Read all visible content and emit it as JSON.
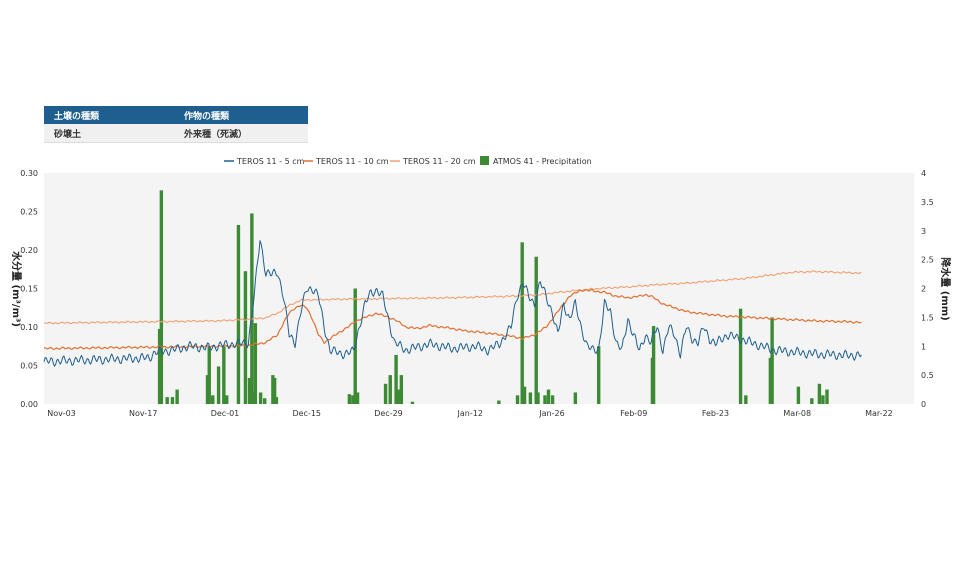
{
  "info_table": {
    "headers": [
      "土壌の種類",
      "作物の種類"
    ],
    "row": [
      "砂壌土",
      "外来種（死滅）"
    ]
  },
  "colors": {
    "teros_5": "#1f5f8f",
    "teros_10": "#e07030",
    "teros_20": "#f0a070",
    "precip": "#3d8a35",
    "plot_bg": "#f4f4f4",
    "header_bg": "#1f5f8f"
  },
  "chart_data": {
    "type": "line",
    "legend_position": "top",
    "grid": false,
    "x_tick_labels": [
      "Nov-03",
      "Nov-17",
      "Dec-01",
      "Dec-15",
      "Dec-29",
      "Jan-12",
      "Jan-26",
      "Feb-09",
      "Feb-23",
      "Mar-08",
      "Mar-22"
    ],
    "x_range": [
      "Oct-31",
      "Mar-29"
    ],
    "y_left": {
      "label": "水分量 (m³/m³)",
      "ticks": [
        "0.00",
        "0.05",
        "0.10",
        "0.15",
        "0.20",
        "0.25",
        "0.30"
      ],
      "range": [
        0,
        0.3
      ]
    },
    "y_right": {
      "label": "降水量 (mm)",
      "ticks": [
        "0",
        "0.5",
        "1",
        "1.5",
        "2",
        "2.5",
        "3",
        "3.5",
        "4"
      ],
      "range": [
        0,
        4
      ]
    },
    "series": [
      {
        "name": "TEROS 11 - 5 cm",
        "type": "line",
        "axis": "left",
        "points": [
          [
            0,
            0.055
          ],
          [
            18,
            0.06
          ],
          [
            19,
            0.067
          ],
          [
            22,
            0.07
          ],
          [
            25,
            0.075
          ],
          [
            28,
            0.073
          ],
          [
            31,
            0.077
          ],
          [
            33,
            0.078
          ],
          [
            35,
            0.08
          ],
          [
            36,
            0.14
          ],
          [
            37,
            0.215
          ],
          [
            38,
            0.17
          ],
          [
            39,
            0.168
          ],
          [
            40,
            0.172
          ],
          [
            41,
            0.14
          ],
          [
            42,
            0.09
          ],
          [
            43,
            0.08
          ],
          [
            44,
            0.12
          ],
          [
            45,
            0.15
          ],
          [
            46,
            0.15
          ],
          [
            47,
            0.14
          ],
          [
            48,
            0.1
          ],
          [
            49,
            0.07
          ],
          [
            51,
            0.065
          ],
          [
            53,
            0.068
          ],
          [
            54,
            0.1
          ],
          [
            55,
            0.13
          ],
          [
            56,
            0.145
          ],
          [
            57,
            0.148
          ],
          [
            58,
            0.14
          ],
          [
            59,
            0.11
          ],
          [
            60,
            0.08
          ],
          [
            62,
            0.07
          ],
          [
            66,
            0.078
          ],
          [
            70,
            0.072
          ],
          [
            74,
            0.075
          ],
          [
            76,
            0.07
          ],
          [
            78,
            0.078
          ],
          [
            80,
            0.1
          ],
          [
            81,
            0.14
          ],
          [
            82,
            0.158
          ],
          [
            83,
            0.14
          ],
          [
            84,
            0.13
          ],
          [
            85,
            0.158
          ],
          [
            86,
            0.14
          ],
          [
            87,
            0.12
          ],
          [
            88,
            0.09
          ],
          [
            89,
            0.13
          ],
          [
            90,
            0.11
          ],
          [
            91,
            0.13
          ],
          [
            92,
            0.1
          ],
          [
            93,
            0.075
          ],
          [
            94,
            0.07
          ],
          [
            95,
            0.072
          ],
          [
            96,
            0.13
          ],
          [
            97,
            0.12
          ],
          [
            98,
            0.08
          ],
          [
            99,
            0.07
          ],
          [
            100,
            0.11
          ],
          [
            101,
            0.09
          ],
          [
            102,
            0.068
          ],
          [
            103,
            0.09
          ],
          [
            104,
            0.08
          ],
          [
            105,
            0.1
          ],
          [
            106,
            0.07
          ],
          [
            107,
            0.1
          ],
          [
            108,
            0.09
          ],
          [
            109,
            0.065
          ],
          [
            110,
            0.1
          ],
          [
            111,
            0.085
          ],
          [
            112,
            0.08
          ],
          [
            113,
            0.1
          ],
          [
            114,
            0.085
          ],
          [
            115,
            0.078
          ],
          [
            117,
            0.09
          ],
          [
            119,
            0.085
          ],
          [
            121,
            0.08
          ],
          [
            123,
            0.075
          ],
          [
            125,
            0.07
          ],
          [
            129,
            0.067
          ],
          [
            132,
            0.065
          ],
          [
            135,
            0.064
          ],
          [
            138,
            0.063
          ],
          [
            140,
            0.064
          ]
        ]
      },
      {
        "name": "TEROS 11 - 10 cm",
        "type": "line",
        "axis": "left",
        "points": [
          [
            0,
            0.072
          ],
          [
            10,
            0.073
          ],
          [
            20,
            0.074
          ],
          [
            30,
            0.075
          ],
          [
            35,
            0.076
          ],
          [
            38,
            0.08
          ],
          [
            40,
            0.09
          ],
          [
            41,
            0.105
          ],
          [
            42,
            0.118
          ],
          [
            43,
            0.125
          ],
          [
            44,
            0.128
          ],
          [
            45,
            0.125
          ],
          [
            46,
            0.11
          ],
          [
            47,
            0.09
          ],
          [
            48,
            0.08
          ],
          [
            50,
            0.09
          ],
          [
            52,
            0.1
          ],
          [
            54,
            0.11
          ],
          [
            56,
            0.115
          ],
          [
            57,
            0.118
          ],
          [
            58,
            0.115
          ],
          [
            60,
            0.11
          ],
          [
            62,
            0.1
          ],
          [
            64,
            0.098
          ],
          [
            66,
            0.102
          ],
          [
            68,
            0.1
          ],
          [
            70,
            0.098
          ],
          [
            72,
            0.095
          ],
          [
            75,
            0.093
          ],
          [
            78,
            0.09
          ],
          [
            80,
            0.088
          ],
          [
            82,
            0.085
          ],
          [
            84,
            0.09
          ],
          [
            86,
            0.1
          ],
          [
            88,
            0.12
          ],
          [
            90,
            0.14
          ],
          [
            92,
            0.148
          ],
          [
            94,
            0.147
          ],
          [
            96,
            0.145
          ],
          [
            98,
            0.14
          ],
          [
            100,
            0.138
          ],
          [
            102,
            0.14
          ],
          [
            103,
            0.142
          ],
          [
            104,
            0.14
          ],
          [
            106,
            0.13
          ],
          [
            108,
            0.125
          ],
          [
            110,
            0.12
          ],
          [
            113,
            0.117
          ],
          [
            117,
            0.114
          ],
          [
            122,
            0.112
          ],
          [
            127,
            0.11
          ],
          [
            132,
            0.108
          ],
          [
            137,
            0.107
          ],
          [
            140,
            0.106
          ]
        ]
      },
      {
        "name": "TEROS 11 - 20 cm",
        "type": "line",
        "axis": "left",
        "points": [
          [
            0,
            0.105
          ],
          [
            10,
            0.106
          ],
          [
            20,
            0.107
          ],
          [
            30,
            0.108
          ],
          [
            35,
            0.11
          ],
          [
            38,
            0.112
          ],
          [
            40,
            0.118
          ],
          [
            42,
            0.128
          ],
          [
            44,
            0.135
          ],
          [
            50,
            0.136
          ],
          [
            60,
            0.137
          ],
          [
            70,
            0.138
          ],
          [
            80,
            0.14
          ],
          [
            85,
            0.142
          ],
          [
            88,
            0.145
          ],
          [
            92,
            0.148
          ],
          [
            95,
            0.15
          ],
          [
            100,
            0.152
          ],
          [
            105,
            0.155
          ],
          [
            110,
            0.157
          ],
          [
            115,
            0.16
          ],
          [
            120,
            0.163
          ],
          [
            125,
            0.168
          ],
          [
            128,
            0.171
          ],
          [
            132,
            0.172
          ],
          [
            136,
            0.171
          ],
          [
            140,
            0.17
          ]
        ]
      },
      {
        "name": "ATMOS 41 - Precipitation",
        "type": "bar",
        "axis": "right",
        "bars": [
          [
            19.8,
            1.3
          ],
          [
            20.1,
            3.7
          ],
          [
            21.1,
            0.12
          ],
          [
            22,
            0.12
          ],
          [
            22.8,
            0.25
          ],
          [
            28,
            0.5
          ],
          [
            28.3,
            1.0
          ],
          [
            28.9,
            0.15
          ],
          [
            29.9,
            0.65
          ],
          [
            30.8,
            1.0
          ],
          [
            31.3,
            0.15
          ],
          [
            33.3,
            3.1
          ],
          [
            34.5,
            2.3
          ],
          [
            35.2,
            0.45
          ],
          [
            35.6,
            3.3
          ],
          [
            36.1,
            0.2
          ],
          [
            36.2,
            1.4
          ],
          [
            37.1,
            0.2
          ],
          [
            37.8,
            0.1
          ],
          [
            39.2,
            0.5
          ],
          [
            39.5,
            0.45
          ],
          [
            39.8,
            0.12
          ],
          [
            52.3,
            0.17
          ],
          [
            52.9,
            0.15
          ],
          [
            53.3,
            2.0
          ],
          [
            53.7,
            0.2
          ],
          [
            58.5,
            0.35
          ],
          [
            59.3,
            0.5
          ],
          [
            60.3,
            0.85
          ],
          [
            60.7,
            0.25
          ],
          [
            61.2,
            0.5
          ],
          [
            63.1,
            0.04
          ],
          [
            77.9,
            0.06
          ],
          [
            81.1,
            0.15
          ],
          [
            81.9,
            2.8
          ],
          [
            82.3,
            0.3
          ],
          [
            83.3,
            0.2
          ],
          [
            84.3,
            2.55
          ],
          [
            84.6,
            0.2
          ],
          [
            85.8,
            0.15
          ],
          [
            86.4,
            0.25
          ],
          [
            87.1,
            0.15
          ],
          [
            91,
            0.2
          ],
          [
            95,
            1.0
          ],
          [
            104.2,
            0.8
          ],
          [
            104.4,
            1.35
          ],
          [
            119.3,
            1.65
          ],
          [
            120.2,
            0.15
          ],
          [
            124.4,
            0.8
          ],
          [
            124.7,
            1.5
          ],
          [
            129.2,
            0.3
          ],
          [
            131.5,
            0.1
          ],
          [
            132.8,
            0.35
          ],
          [
            133.4,
            0.15
          ],
          [
            134.1,
            0.25
          ]
        ]
      }
    ]
  }
}
